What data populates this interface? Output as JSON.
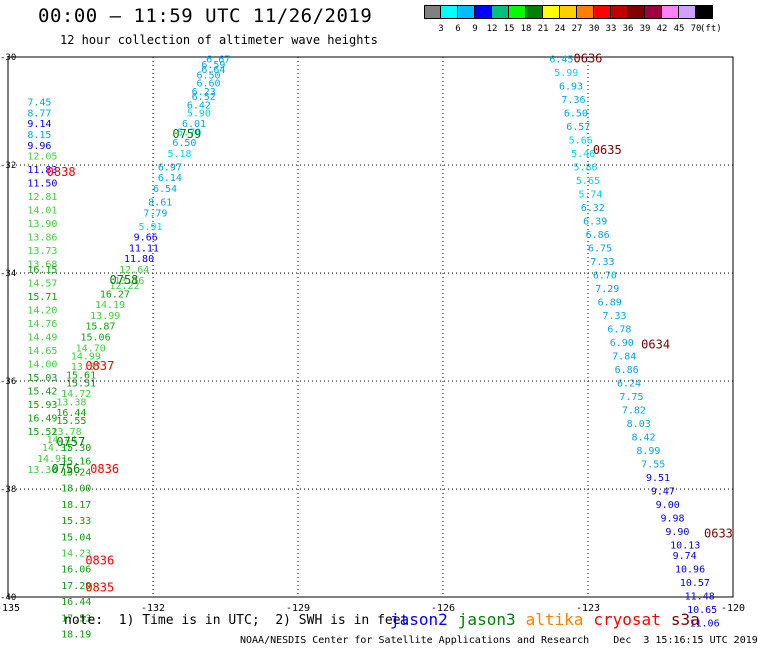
{
  "title": "00:00 — 11:59 UTC 11/26/2019",
  "subtitle": "12 hour collection of altimeter wave heights",
  "colorbar": {
    "unit": "(ft)",
    "colors": [
      "#808080",
      "#00ffff",
      "#00bfff",
      "#0000ff",
      "#00c080",
      "#00ff00",
      "#008000",
      "#ffff00",
      "#ffd000",
      "#ff8000",
      "#ff0000",
      "#c00000",
      "#800000",
      "#a00040",
      "#ff80ff",
      "#d0a0ff",
      "#000000"
    ],
    "labels": [
      "3",
      "6",
      "9",
      "12",
      "15",
      "18",
      "21",
      "24",
      "27",
      "30",
      "33",
      "36",
      "39",
      "42",
      "45",
      "70"
    ]
  },
  "note": "note:  1) Time is in UTC;  2) SWH is in feet",
  "legend": [
    {
      "name": "jason2",
      "color": "#0000ff"
    },
    {
      "name": "jason3",
      "color": "#008000"
    },
    {
      "name": "altika",
      "color": "#ff8000"
    },
    {
      "name": "cryosat",
      "color": "#ff0000"
    },
    {
      "name": "s3a",
      "color": "#800000"
    }
  ],
  "credit": "NOAA/NESDIS Center for Satellite Applications and Research    Dec  3 15:16:15 UTC 2019",
  "chart_data": {
    "type": "scatter",
    "xlim": [
      -135,
      -120
    ],
    "ylim": [
      -40,
      -30
    ],
    "x_ticks": [
      "-135",
      "-132",
      "-129",
      "-126",
      "-123",
      "-120"
    ],
    "y_ticks": [
      "-30",
      "-32",
      "-34",
      "-36",
      "-38",
      "-40"
    ],
    "grid": true,
    "time_labels": [
      {
        "text": "0759",
        "lon": -131.6,
        "lat": -31.5,
        "color": "#008000"
      },
      {
        "text": "0758",
        "lon": -132.9,
        "lat": -34.2,
        "color": "#008000"
      },
      {
        "text": "0757",
        "lon": -134.0,
        "lat": -37.2,
        "color": "#008000"
      },
      {
        "text": "0756",
        "lon": -134.1,
        "lat": -37.7,
        "color": "#008000"
      },
      {
        "text": "0838",
        "lon": -134.2,
        "lat": -32.2,
        "color": "#ff0000"
      },
      {
        "text": "0837",
        "lon": -133.4,
        "lat": -35.8,
        "color": "#ff0000"
      },
      {
        "text": "0836",
        "lon": -133.3,
        "lat": -37.7,
        "color": "#ff0000"
      },
      {
        "text": "0836",
        "lon": -133.4,
        "lat": -39.4,
        "color": "#ff0000"
      },
      {
        "text": "0835",
        "lon": -133.4,
        "lat": -39.9,
        "color": "#ff0000"
      },
      {
        "text": "0636",
        "lon": -123.3,
        "lat": -30.1,
        "color": "#800000"
      },
      {
        "text": "0635",
        "lon": -122.9,
        "lat": -31.8,
        "color": "#800000"
      },
      {
        "text": "0634",
        "lon": -121.9,
        "lat": -35.4,
        "color": "#800000"
      },
      {
        "text": "0633",
        "lon": -120.6,
        "lat": -38.9,
        "color": "#800000"
      }
    ],
    "series": [
      {
        "name": "jason3",
        "points": [
          [
            -130.9,
            -30.1,
            "6.67"
          ],
          [
            -131.0,
            -30.2,
            "6.59"
          ],
          [
            -131.0,
            -30.3,
            "6.64"
          ],
          [
            -131.1,
            -30.4,
            "6.50"
          ],
          [
            -131.1,
            -30.55,
            "6.60"
          ],
          [
            -131.2,
            -30.7,
            "6.23"
          ],
          [
            -131.2,
            -30.8,
            "6.52"
          ],
          [
            -131.3,
            -30.95,
            "6.42"
          ],
          [
            -131.3,
            -31.1,
            "5.90"
          ],
          [
            -131.4,
            -31.3,
            "6.01"
          ],
          [
            -131.5,
            -31.45,
            "5.70"
          ],
          [
            -131.6,
            -31.65,
            "6.50"
          ],
          [
            -131.7,
            -31.85,
            "5.18"
          ],
          [
            -131.9,
            -32.1,
            "6.97"
          ],
          [
            -131.9,
            -32.3,
            "6.14"
          ],
          [
            -132.0,
            -32.5,
            "6.54"
          ],
          [
            -132.1,
            -32.75,
            "8.61"
          ],
          [
            -132.2,
            -32.95,
            "7.79"
          ],
          [
            -132.3,
            -33.2,
            "5.91"
          ],
          [
            -132.4,
            -33.4,
            "9.66"
          ],
          [
            -132.5,
            -33.6,
            "11.11"
          ],
          [
            -132.6,
            -33.8,
            "11.80"
          ],
          [
            -132.7,
            -34.0,
            "12.64"
          ],
          [
            -132.8,
            -34.2,
            "13.16"
          ],
          [
            -132.9,
            -34.3,
            "12.22"
          ],
          [
            -133.1,
            -34.45,
            "16.27"
          ],
          [
            -133.2,
            -34.65,
            "14.19"
          ],
          [
            -133.3,
            -34.85,
            "13.99"
          ],
          [
            -133.4,
            -35.05,
            "15.87"
          ],
          [
            -133.5,
            -35.25,
            "15.06"
          ],
          [
            -133.6,
            -35.45,
            "14.70"
          ],
          [
            -133.7,
            -35.6,
            "14.99"
          ],
          [
            -133.7,
            -35.8,
            "13.37"
          ],
          [
            -133.8,
            -35.95,
            "15.61"
          ],
          [
            -133.8,
            -36.1,
            "15.51"
          ],
          [
            -133.9,
            -36.3,
            "14.72"
          ],
          [
            -134.0,
            -36.45,
            "13.38"
          ],
          [
            -134.0,
            -36.65,
            "16.44"
          ],
          [
            -134.0,
            -36.8,
            "15.55"
          ],
          [
            -134.1,
            -37.0,
            "13.78"
          ],
          [
            -134.2,
            -37.15,
            "14.44"
          ],
          [
            -134.3,
            -37.3,
            "14.37"
          ],
          [
            -134.4,
            -37.5,
            "14.91"
          ],
          [
            -134.6,
            -37.7,
            "13.30"
          ],
          [
            -133.9,
            -37.3,
            "15.30"
          ],
          [
            -133.9,
            -37.55,
            "15.16"
          ],
          [
            -133.9,
            -37.75,
            "15.24"
          ],
          [
            -133.9,
            -38.05,
            "18.00"
          ],
          [
            -133.9,
            -38.35,
            "18.17"
          ],
          [
            -133.9,
            -38.65,
            "15.33"
          ],
          [
            -133.9,
            -38.95,
            "15.04"
          ],
          [
            -133.9,
            -39.25,
            "14.23"
          ],
          [
            -133.9,
            -39.55,
            "16.06"
          ],
          [
            -133.9,
            -39.85,
            "17.29"
          ],
          [
            -133.9,
            -40.15,
            "16.44"
          ],
          [
            -133.9,
            -40.45,
            "17.53"
          ],
          [
            -133.9,
            -40.75,
            "18.19"
          ]
        ]
      },
      {
        "name": "cryosat",
        "points": [
          [
            -134.6,
            -30.9,
            "7.45"
          ],
          [
            -134.6,
            -31.1,
            "8.77"
          ],
          [
            -134.6,
            -31.3,
            "9.14"
          ],
          [
            -134.6,
            -31.5,
            "8.15"
          ],
          [
            -134.6,
            -31.7,
            "9.96"
          ],
          [
            -134.6,
            -31.9,
            "12.05"
          ],
          [
            -134.6,
            -32.15,
            "11.83"
          ],
          [
            -134.6,
            -32.4,
            "11.50"
          ],
          [
            -134.6,
            -32.65,
            "12.81"
          ],
          [
            -134.6,
            -32.9,
            "14.01"
          ],
          [
            -134.6,
            -33.15,
            "13.90"
          ],
          [
            -134.6,
            -33.4,
            "13.86"
          ],
          [
            -134.6,
            -33.65,
            "13.73"
          ],
          [
            -134.6,
            -33.9,
            "13.68"
          ],
          [
            -134.6,
            -34.0,
            "16.15"
          ],
          [
            -134.6,
            -34.25,
            "14.57"
          ],
          [
            -134.6,
            -34.5,
            "15.71"
          ],
          [
            -134.6,
            -34.75,
            "14.20"
          ],
          [
            -134.6,
            -35.0,
            "14.76"
          ],
          [
            -134.6,
            -35.25,
            "14.49"
          ],
          [
            -134.6,
            -35.5,
            "14.65"
          ],
          [
            -134.6,
            -35.75,
            "14.00"
          ],
          [
            -134.6,
            -36.0,
            "15.03"
          ],
          [
            -134.6,
            -36.25,
            "15.42"
          ],
          [
            -134.6,
            -36.5,
            "15.93"
          ],
          [
            -134.6,
            -36.75,
            "16.49"
          ],
          [
            -134.6,
            -37.0,
            "15.52"
          ]
        ]
      },
      {
        "name": "s3a",
        "points": [
          [
            -123.8,
            -30.1,
            "6.45"
          ],
          [
            -123.7,
            -30.35,
            "5.99"
          ],
          [
            -123.6,
            -30.6,
            "6.93"
          ],
          [
            -123.55,
            -30.85,
            "7.36"
          ],
          [
            -123.5,
            -31.1,
            "6.50"
          ],
          [
            -123.45,
            -31.35,
            "6.57"
          ],
          [
            -123.4,
            -31.6,
            "5.66"
          ],
          [
            -123.35,
            -31.85,
            "5.46"
          ],
          [
            -123.3,
            -32.1,
            "5.86"
          ],
          [
            -123.25,
            -32.35,
            "5.65"
          ],
          [
            -123.2,
            -32.6,
            "5.74"
          ],
          [
            -123.15,
            -32.85,
            "6.32"
          ],
          [
            -123.1,
            -33.1,
            "6.39"
          ],
          [
            -123.05,
            -33.35,
            "6.86"
          ],
          [
            -123.0,
            -33.6,
            "6.75"
          ],
          [
            -122.95,
            -33.85,
            "7.33"
          ],
          [
            -122.9,
            -34.1,
            "6.70"
          ],
          [
            -122.85,
            -34.35,
            "7.29"
          ],
          [
            -122.8,
            -34.6,
            "6.89"
          ],
          [
            -122.7,
            -34.85,
            "7.33"
          ],
          [
            -122.6,
            -35.1,
            "6.78"
          ],
          [
            -122.55,
            -35.35,
            "6.90"
          ],
          [
            -122.5,
            -35.6,
            "7.84"
          ],
          [
            -122.45,
            -35.85,
            "6.86"
          ],
          [
            -122.4,
            -36.1,
            "6.24"
          ],
          [
            -122.35,
            -36.35,
            "7.75"
          ],
          [
            -122.3,
            -36.6,
            "7.82"
          ],
          [
            -122.2,
            -36.85,
            "8.03"
          ],
          [
            -122.1,
            -37.1,
            "8.42"
          ],
          [
            -122.0,
            -37.35,
            "8.99"
          ],
          [
            -121.9,
            -37.6,
            "7.55"
          ],
          [
            -121.8,
            -37.85,
            "9.51"
          ],
          [
            -121.7,
            -38.1,
            "9.47"
          ],
          [
            -121.6,
            -38.35,
            "9.00"
          ],
          [
            -121.5,
            -38.6,
            "9.98"
          ],
          [
            -121.4,
            -38.85,
            "9.90"
          ],
          [
            -121.3,
            -39.1,
            "10.13"
          ],
          [
            -121.25,
            -39.3,
            "9.74"
          ],
          [
            -121.2,
            -39.55,
            "10.96"
          ],
          [
            -121.1,
            -39.8,
            "10.57"
          ],
          [
            -121.0,
            -40.05,
            "11.48"
          ],
          [
            -120.95,
            -40.3,
            "10.65"
          ],
          [
            -120.9,
            -40.55,
            "11.06"
          ]
        ]
      }
    ]
  }
}
